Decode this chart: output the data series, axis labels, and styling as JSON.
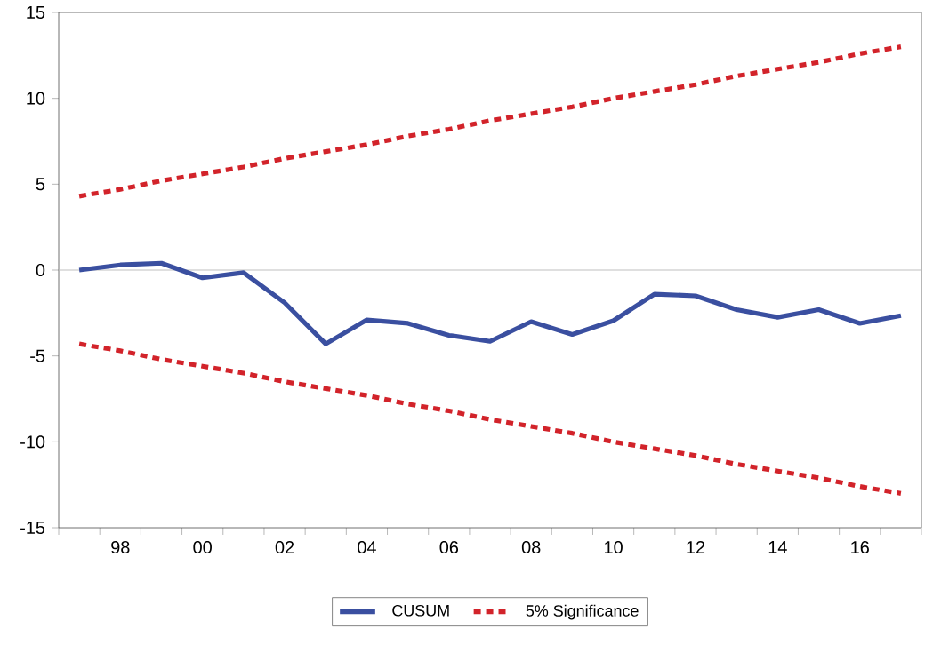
{
  "chart_data": {
    "type": "line",
    "x": [
      1997,
      1998,
      1999,
      2000,
      2001,
      2002,
      2003,
      2004,
      2005,
      2006,
      2007,
      2008,
      2009,
      2010,
      2011,
      2012,
      2013,
      2014,
      2015,
      2016,
      2017
    ],
    "series": [
      {
        "name": "CUSUM",
        "color": "#3a4fa0",
        "line_style": "solid",
        "values": [
          0.0,
          0.3,
          0.4,
          -0.45,
          -0.15,
          -1.9,
          -4.3,
          -2.9,
          -3.1,
          -3.8,
          -4.15,
          -3.0,
          -3.75,
          -2.95,
          -1.4,
          -1.5,
          -2.3,
          -2.75,
          -2.3,
          -3.1,
          -2.65
        ]
      },
      {
        "name": "5% Significance",
        "color": "#d2232a",
        "line_style": "dotted",
        "values": [
          4.3,
          4.7,
          5.2,
          5.6,
          6.0,
          6.5,
          6.9,
          7.3,
          7.8,
          8.2,
          8.7,
          9.1,
          9.5,
          10.0,
          10.4,
          10.8,
          11.3,
          11.7,
          12.1,
          12.6,
          13.0
        ]
      },
      {
        "color": "#d2232a",
        "line_style": "dotted",
        "values": [
          -4.3,
          -4.7,
          -5.2,
          -5.6,
          -6.0,
          -6.5,
          -6.9,
          -7.3,
          -7.8,
          -8.2,
          -8.7,
          -9.1,
          -9.5,
          -10.0,
          -10.4,
          -10.8,
          -11.3,
          -11.7,
          -12.1,
          -12.6,
          -13.0
        ]
      }
    ],
    "xlim": [
      1996.5,
      2017.5
    ],
    "xticks": [
      {
        "value": 1996.5,
        "label": null
      },
      {
        "value": 1997.5,
        "label": null
      },
      {
        "value": 1998,
        "label": "98"
      },
      {
        "value": 1998.5,
        "label": null
      },
      {
        "value": 1999.5,
        "label": null
      },
      {
        "value": 2000,
        "label": "00"
      },
      {
        "value": 2000.5,
        "label": null
      },
      {
        "value": 2001.5,
        "label": null
      },
      {
        "value": 2002,
        "label": "02"
      },
      {
        "value": 2002.5,
        "label": null
      },
      {
        "value": 2003.5,
        "label": null
      },
      {
        "value": 2004,
        "label": "04"
      },
      {
        "value": 2004.5,
        "label": null
      },
      {
        "value": 2005.5,
        "label": null
      },
      {
        "value": 2006,
        "label": "06"
      },
      {
        "value": 2006.5,
        "label": null
      },
      {
        "value": 2007.5,
        "label": null
      },
      {
        "value": 2008,
        "label": "08"
      },
      {
        "value": 2008.5,
        "label": null
      },
      {
        "value": 2009.5,
        "label": null
      },
      {
        "value": 2010,
        "label": "10"
      },
      {
        "value": 2010.5,
        "label": null
      },
      {
        "value": 2011.5,
        "label": null
      },
      {
        "value": 2012,
        "label": "12"
      },
      {
        "value": 2012.5,
        "label": null
      },
      {
        "value": 2013.5,
        "label": null
      },
      {
        "value": 2014,
        "label": "14"
      },
      {
        "value": 2014.5,
        "label": null
      },
      {
        "value": 2015.5,
        "label": null
      },
      {
        "value": 2016,
        "label": "16"
      },
      {
        "value": 2016.5,
        "label": null
      },
      {
        "value": 2017.5,
        "label": null
      }
    ],
    "ylim": [
      -15,
      15
    ],
    "yticks": [
      -15,
      -10,
      -5,
      0,
      5,
      10,
      15
    ],
    "ref_lines": [
      {
        "axis": "y",
        "value": 0,
        "color": "#c0c0c0"
      }
    ],
    "grid": false,
    "legend": "bottom",
    "marker": "none"
  }
}
